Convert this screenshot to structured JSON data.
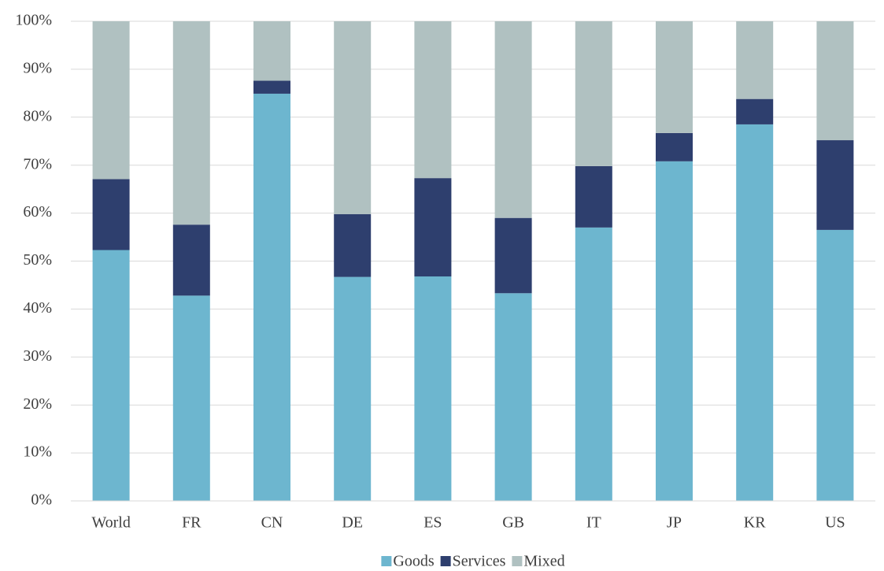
{
  "chart_data": {
    "type": "stacked_bar",
    "categories": [
      "World",
      "FR",
      "CN",
      "DE",
      "ES",
      "GB",
      "IT",
      "JP",
      "KR",
      "US"
    ],
    "series": [
      {
        "name": "Goods",
        "color": "#6db6cf",
        "values": [
          52.3,
          42.8,
          84.9,
          46.7,
          46.8,
          43.3,
          57.0,
          70.8,
          78.5,
          56.5
        ]
      },
      {
        "name": "Services",
        "color": "#2e3f6e",
        "values": [
          14.8,
          14.8,
          2.7,
          13.1,
          20.5,
          15.7,
          12.8,
          5.9,
          5.3,
          18.7
        ]
      },
      {
        "name": "Mixed",
        "color": "#b0c1c1",
        "values": [
          32.9,
          42.4,
          12.4,
          40.2,
          32.7,
          41.0,
          30.2,
          23.3,
          16.2,
          24.8
        ]
      }
    ],
    "ylim": [
      0,
      100
    ],
    "yticks": [
      {
        "value": 0,
        "label": "0%"
      },
      {
        "value": 10,
        "label": "10%"
      },
      {
        "value": 20,
        "label": "20%"
      },
      {
        "value": 30,
        "label": "30%"
      },
      {
        "value": 40,
        "label": "40%"
      },
      {
        "value": 50,
        "label": "50%"
      },
      {
        "value": 60,
        "label": "60%"
      },
      {
        "value": 70,
        "label": "70%"
      },
      {
        "value": 80,
        "label": "80%"
      },
      {
        "value": 90,
        "label": "90%"
      },
      {
        "value": 100,
        "label": "100%"
      }
    ],
    "grid": true,
    "legend": "bottom"
  }
}
